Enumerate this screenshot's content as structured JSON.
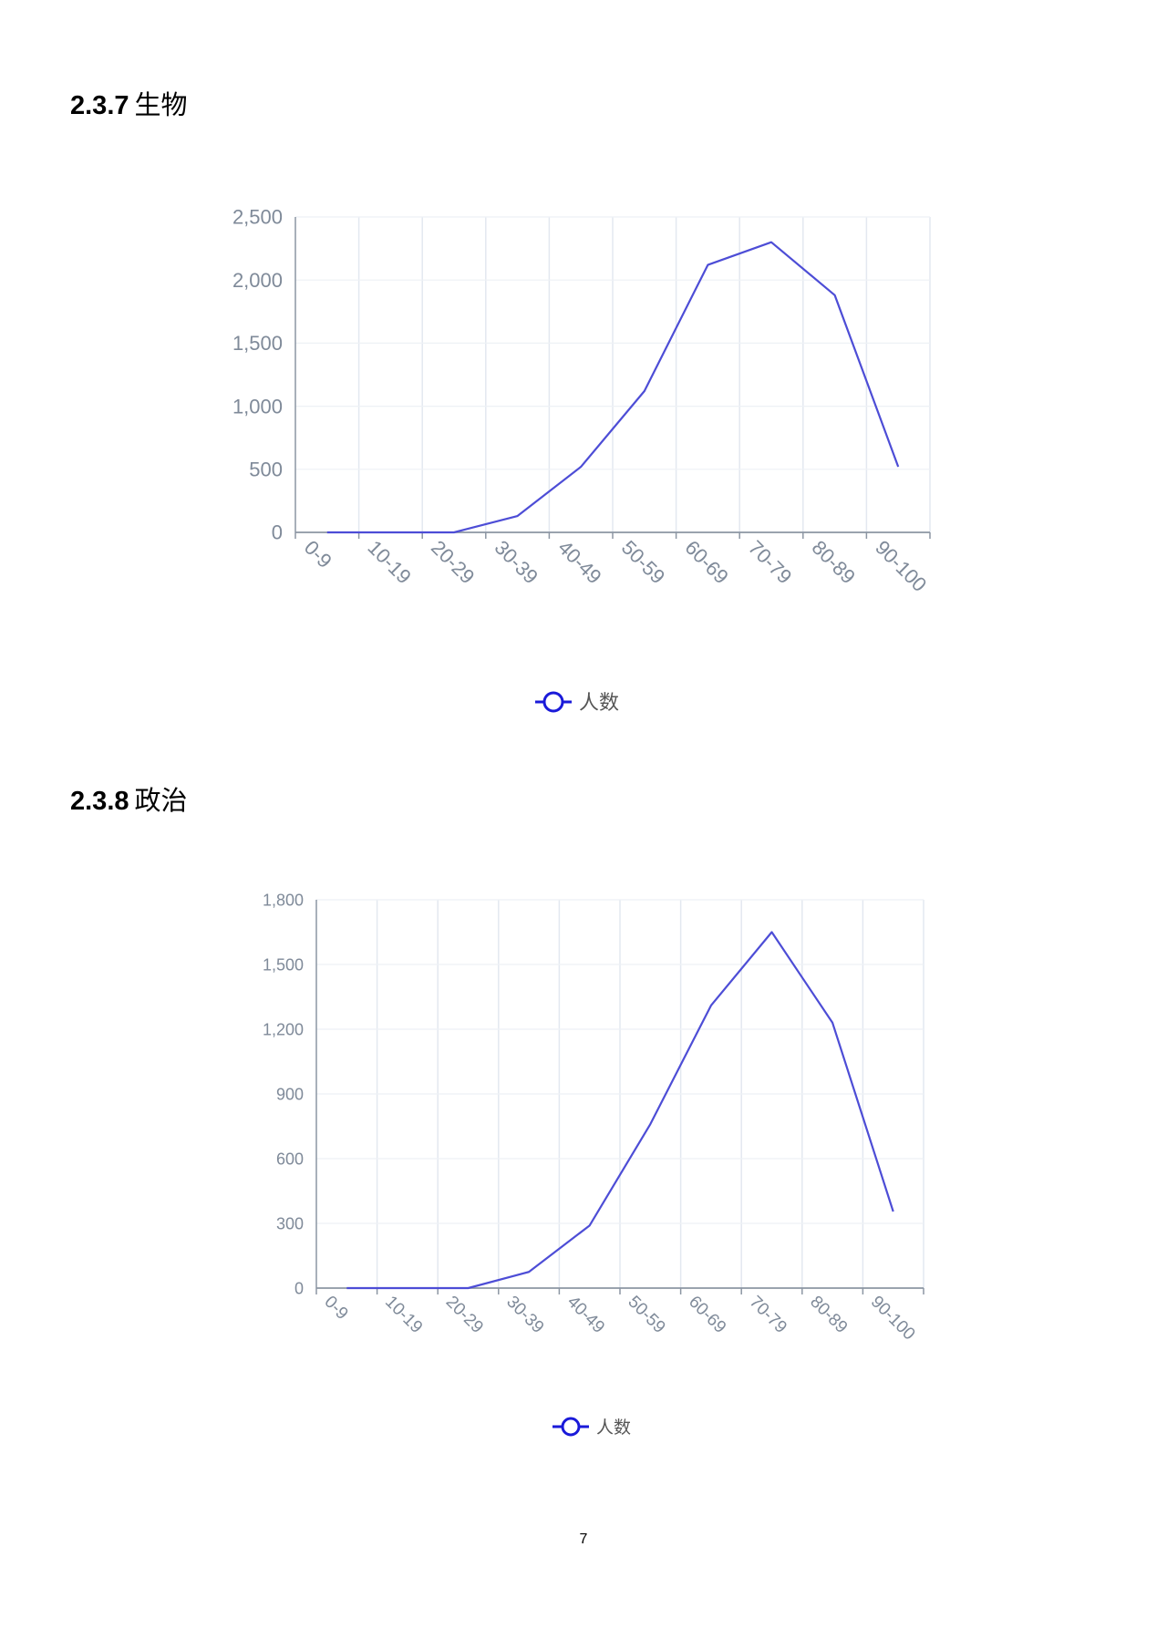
{
  "sections": [
    {
      "number": "2.3.7",
      "title": "生物"
    },
    {
      "number": "2.3.8",
      "title": "政治"
    }
  ],
  "page_number": "7",
  "chart_data": [
    {
      "type": "line",
      "categories": [
        "0-9",
        "10-19",
        "20-29",
        "30-39",
        "40-49",
        "50-59",
        "60-69",
        "70-79",
        "80-89",
        "90-100"
      ],
      "series": [
        {
          "name": "人数",
          "values": [
            0,
            0,
            0,
            130,
            520,
            1120,
            2120,
            2300,
            1880,
            520
          ]
        }
      ],
      "ylim": [
        0,
        2500
      ],
      "yticks": [
        0,
        500,
        1000,
        1500,
        2000,
        2500
      ],
      "ytick_labels": [
        "0",
        "500",
        "1,000",
        "1,500",
        "2,000",
        "2,500"
      ],
      "grid": true,
      "legend": "bottom-center",
      "line_color": "#4d4dd6",
      "legend_color": "#1a1ad9"
    },
    {
      "type": "line",
      "categories": [
        "0-9",
        "10-19",
        "20-29",
        "30-39",
        "40-49",
        "50-59",
        "60-69",
        "70-79",
        "80-89",
        "90-100"
      ],
      "series": [
        {
          "name": "人数",
          "values": [
            0,
            0,
            0,
            75,
            290,
            760,
            1310,
            1650,
            1230,
            355
          ]
        }
      ],
      "ylim": [
        0,
        1800
      ],
      "yticks": [
        0,
        300,
        600,
        900,
        1200,
        1500,
        1800
      ],
      "ytick_labels": [
        "0",
        "300",
        "600",
        "900",
        "1,200",
        "1,500",
        "1,800"
      ],
      "grid": true,
      "legend": "bottom-center",
      "line_color": "#4d4dd6",
      "legend_color": "#1a1ad9"
    }
  ]
}
